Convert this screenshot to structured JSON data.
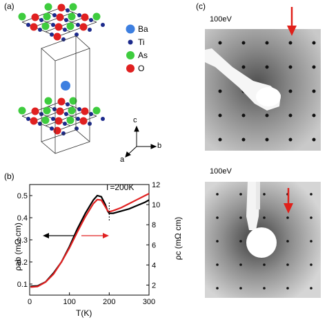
{
  "panels": {
    "a_label": "(a)",
    "b_label": "(b)",
    "c_label": "(c)"
  },
  "legend": {
    "items": [
      {
        "label": "Ba",
        "color": "#3d7fe0"
      },
      {
        "label": "Ti",
        "color": "#1c2a8c"
      },
      {
        "label": "As",
        "color": "#3ecc3e"
      },
      {
        "label": "O",
        "color": "#e02020"
      }
    ]
  },
  "axes_labels": {
    "c": "c",
    "a": "a",
    "b": "b"
  },
  "leed": {
    "top_energy": "100eV",
    "bottom_energy": "100eV",
    "arrow_color": "#e0201a"
  },
  "chart_data": {
    "type": "line",
    "annotation": "T=200K",
    "xlabel": "T(K)",
    "ylabel_left": "ρab (mΩ cm)",
    "ylabel_right": "ρc (mΩ cm)",
    "xlim": [
      0,
      300
    ],
    "ylim_left": [
      0.05,
      0.55
    ],
    "ylim_right": [
      1,
      12
    ],
    "x_ticks": [
      0,
      100,
      200,
      300
    ],
    "y_ticks_left": [
      0.1,
      0.2,
      0.3,
      0.4,
      0.5
    ],
    "y_ticks_right": [
      2,
      4,
      6,
      8,
      10,
      12
    ],
    "series": [
      {
        "color": "#000000",
        "axis": "left",
        "x": [
          2,
          20,
          40,
          60,
          80,
          100,
          120,
          140,
          160,
          170,
          180,
          190,
          196,
          200,
          210,
          230,
          250,
          270,
          290,
          300
        ],
        "y": [
          0.09,
          0.092,
          0.11,
          0.15,
          0.2,
          0.27,
          0.35,
          0.42,
          0.48,
          0.5,
          0.495,
          0.46,
          0.43,
          0.42,
          0.42,
          0.43,
          0.44,
          0.455,
          0.47,
          0.48
        ]
      },
      {
        "color": "#e02020",
        "axis": "right",
        "x": [
          2,
          20,
          40,
          60,
          80,
          100,
          120,
          140,
          160,
          170,
          180,
          190,
          196,
          200,
          210,
          230,
          250,
          270,
          290,
          300
        ],
        "y": [
          1.8,
          1.85,
          2.3,
          3.1,
          4.3,
          5.7,
          7.3,
          8.8,
          10.1,
          10.5,
          10.45,
          9.8,
          9.4,
          9.3,
          9.4,
          9.7,
          10.1,
          10.5,
          10.9,
          11.1
        ]
      }
    ]
  }
}
